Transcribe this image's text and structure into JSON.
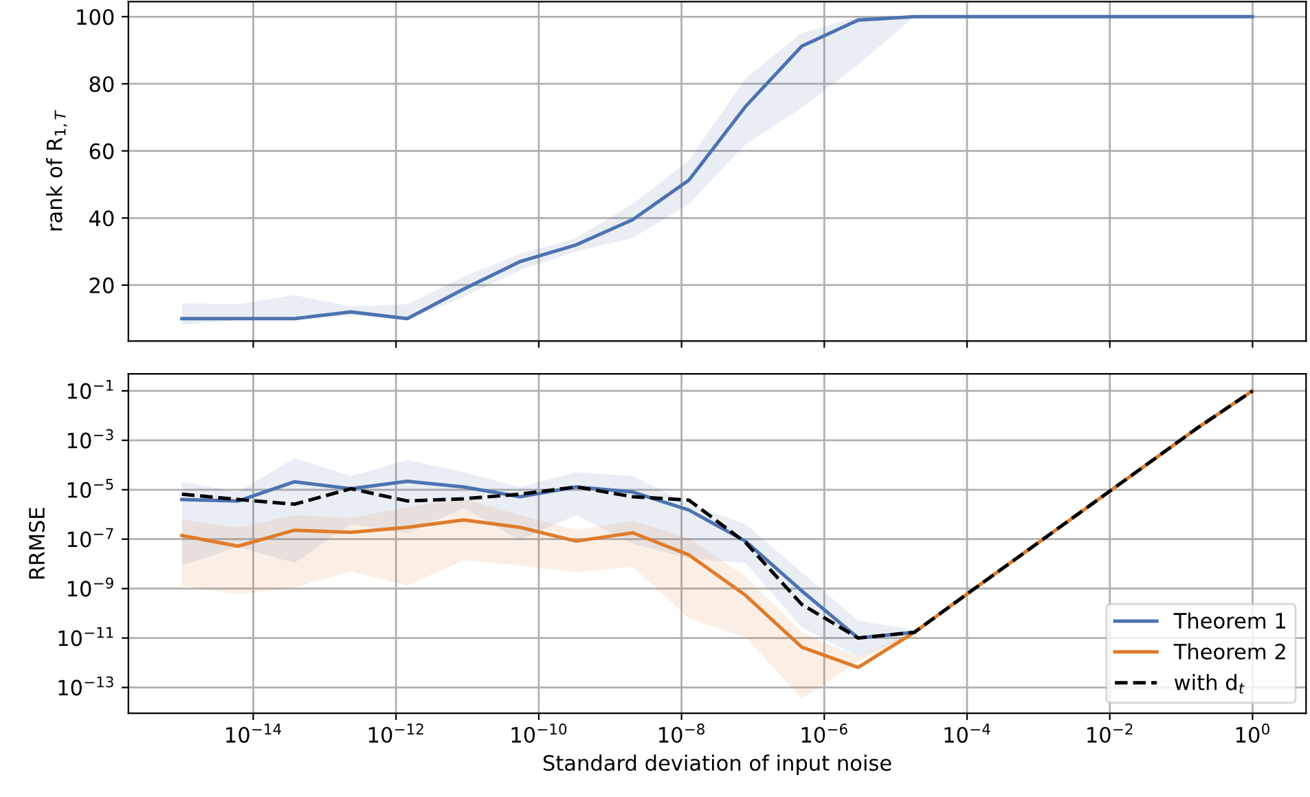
{
  "chart_data": [
    {
      "type": "line",
      "ylabel": "rank of R$_{1,T}$",
      "log": "x",
      "grid": true,
      "tick_labels": "y",
      "x": [
        1e-15,
        6.16e-15,
        3.79e-14,
        2.34e-13,
        1.44e-12,
        8.86e-12,
        5.46e-11,
        3.36e-10,
        2.07e-09,
        1.27e-08,
        7.85e-08,
        4.83e-07,
        2.98e-06,
        1.83e-05,
        0.000113,
        0.000695,
        0.00428,
        0.0264,
        0.162,
        1
      ],
      "xlim": [
        1.78e-16,
        5.62
      ],
      "ylim": [
        3.3,
        104.5
      ],
      "yticks": [
        20,
        40,
        60,
        80,
        100
      ],
      "xticks": [
        {
          "value": 1e-14,
          "label": null
        },
        {
          "value": 1e-12,
          "label": null
        },
        {
          "value": 1e-10,
          "label": null
        },
        {
          "value": 1e-08,
          "label": null
        },
        {
          "value": 1e-06,
          "label": null
        },
        {
          "value": 0.0001,
          "label": null
        },
        {
          "value": 0.01,
          "label": null
        },
        {
          "value": 1,
          "label": null
        }
      ],
      "series": [
        {
          "color": "#4c72b0",
          "values": [
            10,
            10,
            10,
            12,
            10,
            18.8,
            27,
            32,
            39.5,
            51.3,
            73.2,
            91.2,
            99,
            100,
            100,
            100,
            100,
            100,
            100,
            100
          ],
          "lower": [
            8.2,
            9.6,
            9.6,
            10.9,
            9.6,
            16.4,
            24.5,
            30,
            34,
            44.2,
            61.9,
            72.8,
            85.7,
            100,
            100,
            100,
            100,
            100,
            100,
            100
          ],
          "upper": [
            14.6,
            14.3,
            17,
            13.6,
            14.3,
            22.5,
            29.3,
            34,
            44.2,
            57.2,
            81.6,
            95.2,
            100,
            100,
            100,
            100,
            100,
            100,
            100,
            100
          ]
        }
      ]
    },
    {
      "type": "line",
      "xlabel": "Standard deviation of input noise",
      "ylabel": "RRMSE",
      "log": "xy",
      "grid": true,
      "legend": "bottom right",
      "x": [
        1e-15,
        6.16e-15,
        3.79e-14,
        2.34e-13,
        1.44e-12,
        8.86e-12,
        5.46e-11,
        3.36e-10,
        2.07e-09,
        1.27e-08,
        7.85e-08,
        4.83e-07,
        2.98e-06,
        1.83e-05,
        0.000113,
        0.000695,
        0.00428,
        0.0264,
        0.162,
        1
      ],
      "xlim": [
        1.78e-16,
        5.62
      ],
      "xticks": [
        {
          "value": 1e-14,
          "label": "10$^{−14}$"
        },
        {
          "value": 1e-12,
          "label": "10$^{−12}$"
        },
        {
          "value": 1e-10,
          "label": "10$^{−10}$"
        },
        {
          "value": 1e-08,
          "label": "10$^{−8}$"
        },
        {
          "value": 1e-06,
          "label": "10$^{−6}$"
        },
        {
          "value": 0.0001,
          "label": "10$^{−4}$"
        },
        {
          "value": 0.01,
          "label": "10$^{−2}$"
        },
        {
          "value": 1,
          "label": "10$^{0}$"
        }
      ],
      "ylim": [
        9e-15,
        0.49
      ],
      "yticks": [
        {
          "value": 1e-13,
          "label": "10$^{−13}$"
        },
        {
          "value": 1e-11,
          "label": "10$^{−11}$"
        },
        {
          "value": 1e-09,
          "label": "10$^{−9}$"
        },
        {
          "value": 1e-07,
          "label": "10$^{−7}$"
        },
        {
          "value": 1e-05,
          "label": "10$^{−5}$"
        },
        {
          "value": 0.001,
          "label": "10$^{−3}$"
        },
        {
          "value": 0.1,
          "label": "10$^{−1}$"
        }
      ],
      "series": [
        {
          "name": "Theorem 1",
          "color": "#4c72b0",
          "line_style": "solid",
          "values": [
            4e-06,
            3.5e-06,
            2.1e-05,
            1.1e-05,
            2.2e-05,
            1.3e-05,
            5.2e-06,
            1.3e-05,
            8.1e-06,
            1.5e-06,
            8.3e-08,
            8.1e-10,
            1e-11,
            1.7e-11,
            null,
            null,
            null,
            null,
            null,
            null
          ],
          "lower": [
            8.7e-09,
            4.8e-08,
            1.1e-08,
            4.1e-07,
            1.7e-07,
            1.8e-06,
            9.1e-08,
            9.5e-07,
            6.5e-08,
            1.7e-08,
            1.1e-08,
            2.7e-11,
            1.7e-12,
            1.4e-11,
            null,
            null,
            null,
            null,
            null,
            null
          ],
          "upper": [
            2.1e-05,
            8.1e-06,
            0.00019,
            3.6e-05,
            0.00016,
            5.1e-05,
            1.3e-05,
            5.1e-05,
            3.6e-05,
            2.6e-06,
            4.1e-07,
            4.6e-09,
            5.1e-11,
            2.1e-11,
            null,
            null,
            null,
            null,
            null,
            null
          ]
        },
        {
          "name": "Theorem 2",
          "color": "#e07b2a",
          "line_style": "solid",
          "values": [
            1.4e-07,
            5.2e-08,
            2.3e-07,
            1.9e-07,
            3e-07,
            6e-07,
            3e-07,
            8.3e-08,
            1.8e-07,
            2.3e-08,
            5.4e-10,
            4.3e-12,
            6.5e-13,
            1.7e-11,
            7.8e-10,
            3.4e-08,
            1.5e-06,
            6.6e-05,
            0.0029,
            0.1
          ],
          "lower": [
            1.3e-09,
            5.9e-10,
            1.1e-09,
            5e-09,
            1.3e-09,
            1.4e-08,
            8.7e-09,
            4.6e-09,
            7.6e-09,
            6.3e-11,
            1.1e-11,
            3.5e-14,
            1.1e-12,
            1.4e-11,
            7.8e-10,
            3.4e-08,
            1.5e-06,
            6.6e-05,
            0.0029,
            0.1
          ],
          "upper": [
            6.3e-07,
            2.9e-07,
            9.5e-07,
            7.1e-07,
            2e-06,
            4.3e-06,
            9.5e-07,
            2.3e-07,
            5.5e-07,
            1.1e-07,
            3e-09,
            1.7e-11,
            1.7e-12,
            1.9e-11,
            7.8e-10,
            3.4e-08,
            1.5e-06,
            6.6e-05,
            0.0029,
            0.1
          ]
        },
        {
          "name": "with d$_{t}$",
          "color": "#000000",
          "line_style": "dashed",
          "values": [
            6.6e-06,
            4e-06,
            2.6e-06,
            1.1e-05,
            3.5e-06,
            4.3e-06,
            6.6e-06,
            1.3e-05,
            5.2e-06,
            3.8e-06,
            7.4e-08,
            2.3e-10,
            1e-11,
            1.7e-11,
            7.8e-10,
            3.4e-08,
            1.5e-06,
            6.6e-05,
            0.0029,
            0.1
          ]
        }
      ]
    }
  ]
}
